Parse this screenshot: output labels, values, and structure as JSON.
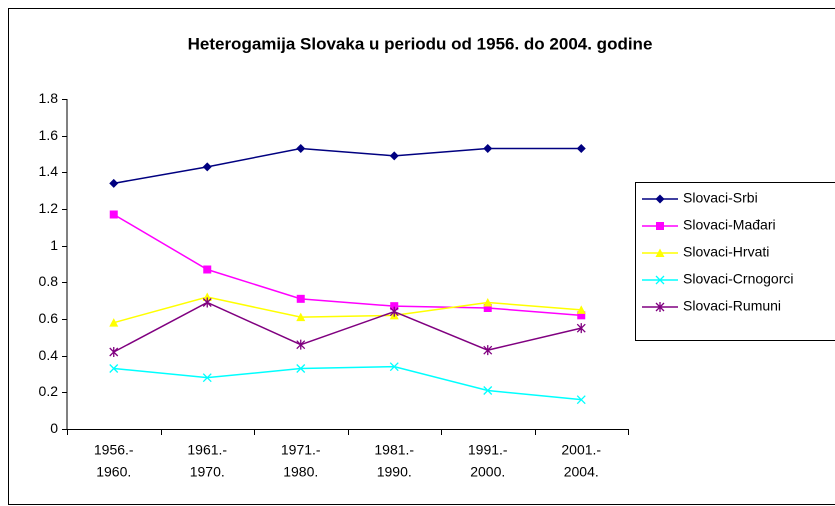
{
  "chart_data": {
    "type": "line",
    "title": "Heterogamija Slovaka u periodu od 1956. do 2004. godine",
    "categories": [
      [
        "1956.-",
        "1960."
      ],
      [
        "1961.-",
        "1970."
      ],
      [
        "1971.-",
        "1980."
      ],
      [
        "1981.-",
        "1990."
      ],
      [
        "1991.-",
        "2000."
      ],
      [
        "2001.-",
        "2004."
      ]
    ],
    "series": [
      {
        "name": "Slovaci-Srbi",
        "color": "#000080",
        "marker": "diamond",
        "values": [
          1.34,
          1.43,
          1.53,
          1.49,
          1.53,
          1.53
        ]
      },
      {
        "name": "Slovaci-Mađari",
        "color": "#ff00ff",
        "marker": "square",
        "values": [
          1.17,
          0.87,
          0.71,
          0.67,
          0.66,
          0.62
        ]
      },
      {
        "name": "Slovaci-Hrvati",
        "color": "#ffff00",
        "marker": "triangle",
        "values": [
          0.58,
          0.72,
          0.61,
          0.62,
          0.69,
          0.65
        ]
      },
      {
        "name": "Slovaci-Crnogorci",
        "color": "#00ffff",
        "marker": "x",
        "values": [
          0.33,
          0.28,
          0.33,
          0.34,
          0.21,
          0.16
        ]
      },
      {
        "name": "Slovaci-Rumuni",
        "color": "#800080",
        "marker": "star",
        "values": [
          0.42,
          0.69,
          0.46,
          0.64,
          0.43,
          0.55
        ]
      }
    ],
    "ylim": [
      0,
      1.8
    ],
    "yticks": [
      0,
      0.2,
      0.4,
      0.6,
      0.8,
      1,
      1.2,
      1.4,
      1.6,
      1.8
    ],
    "legend": "right"
  }
}
